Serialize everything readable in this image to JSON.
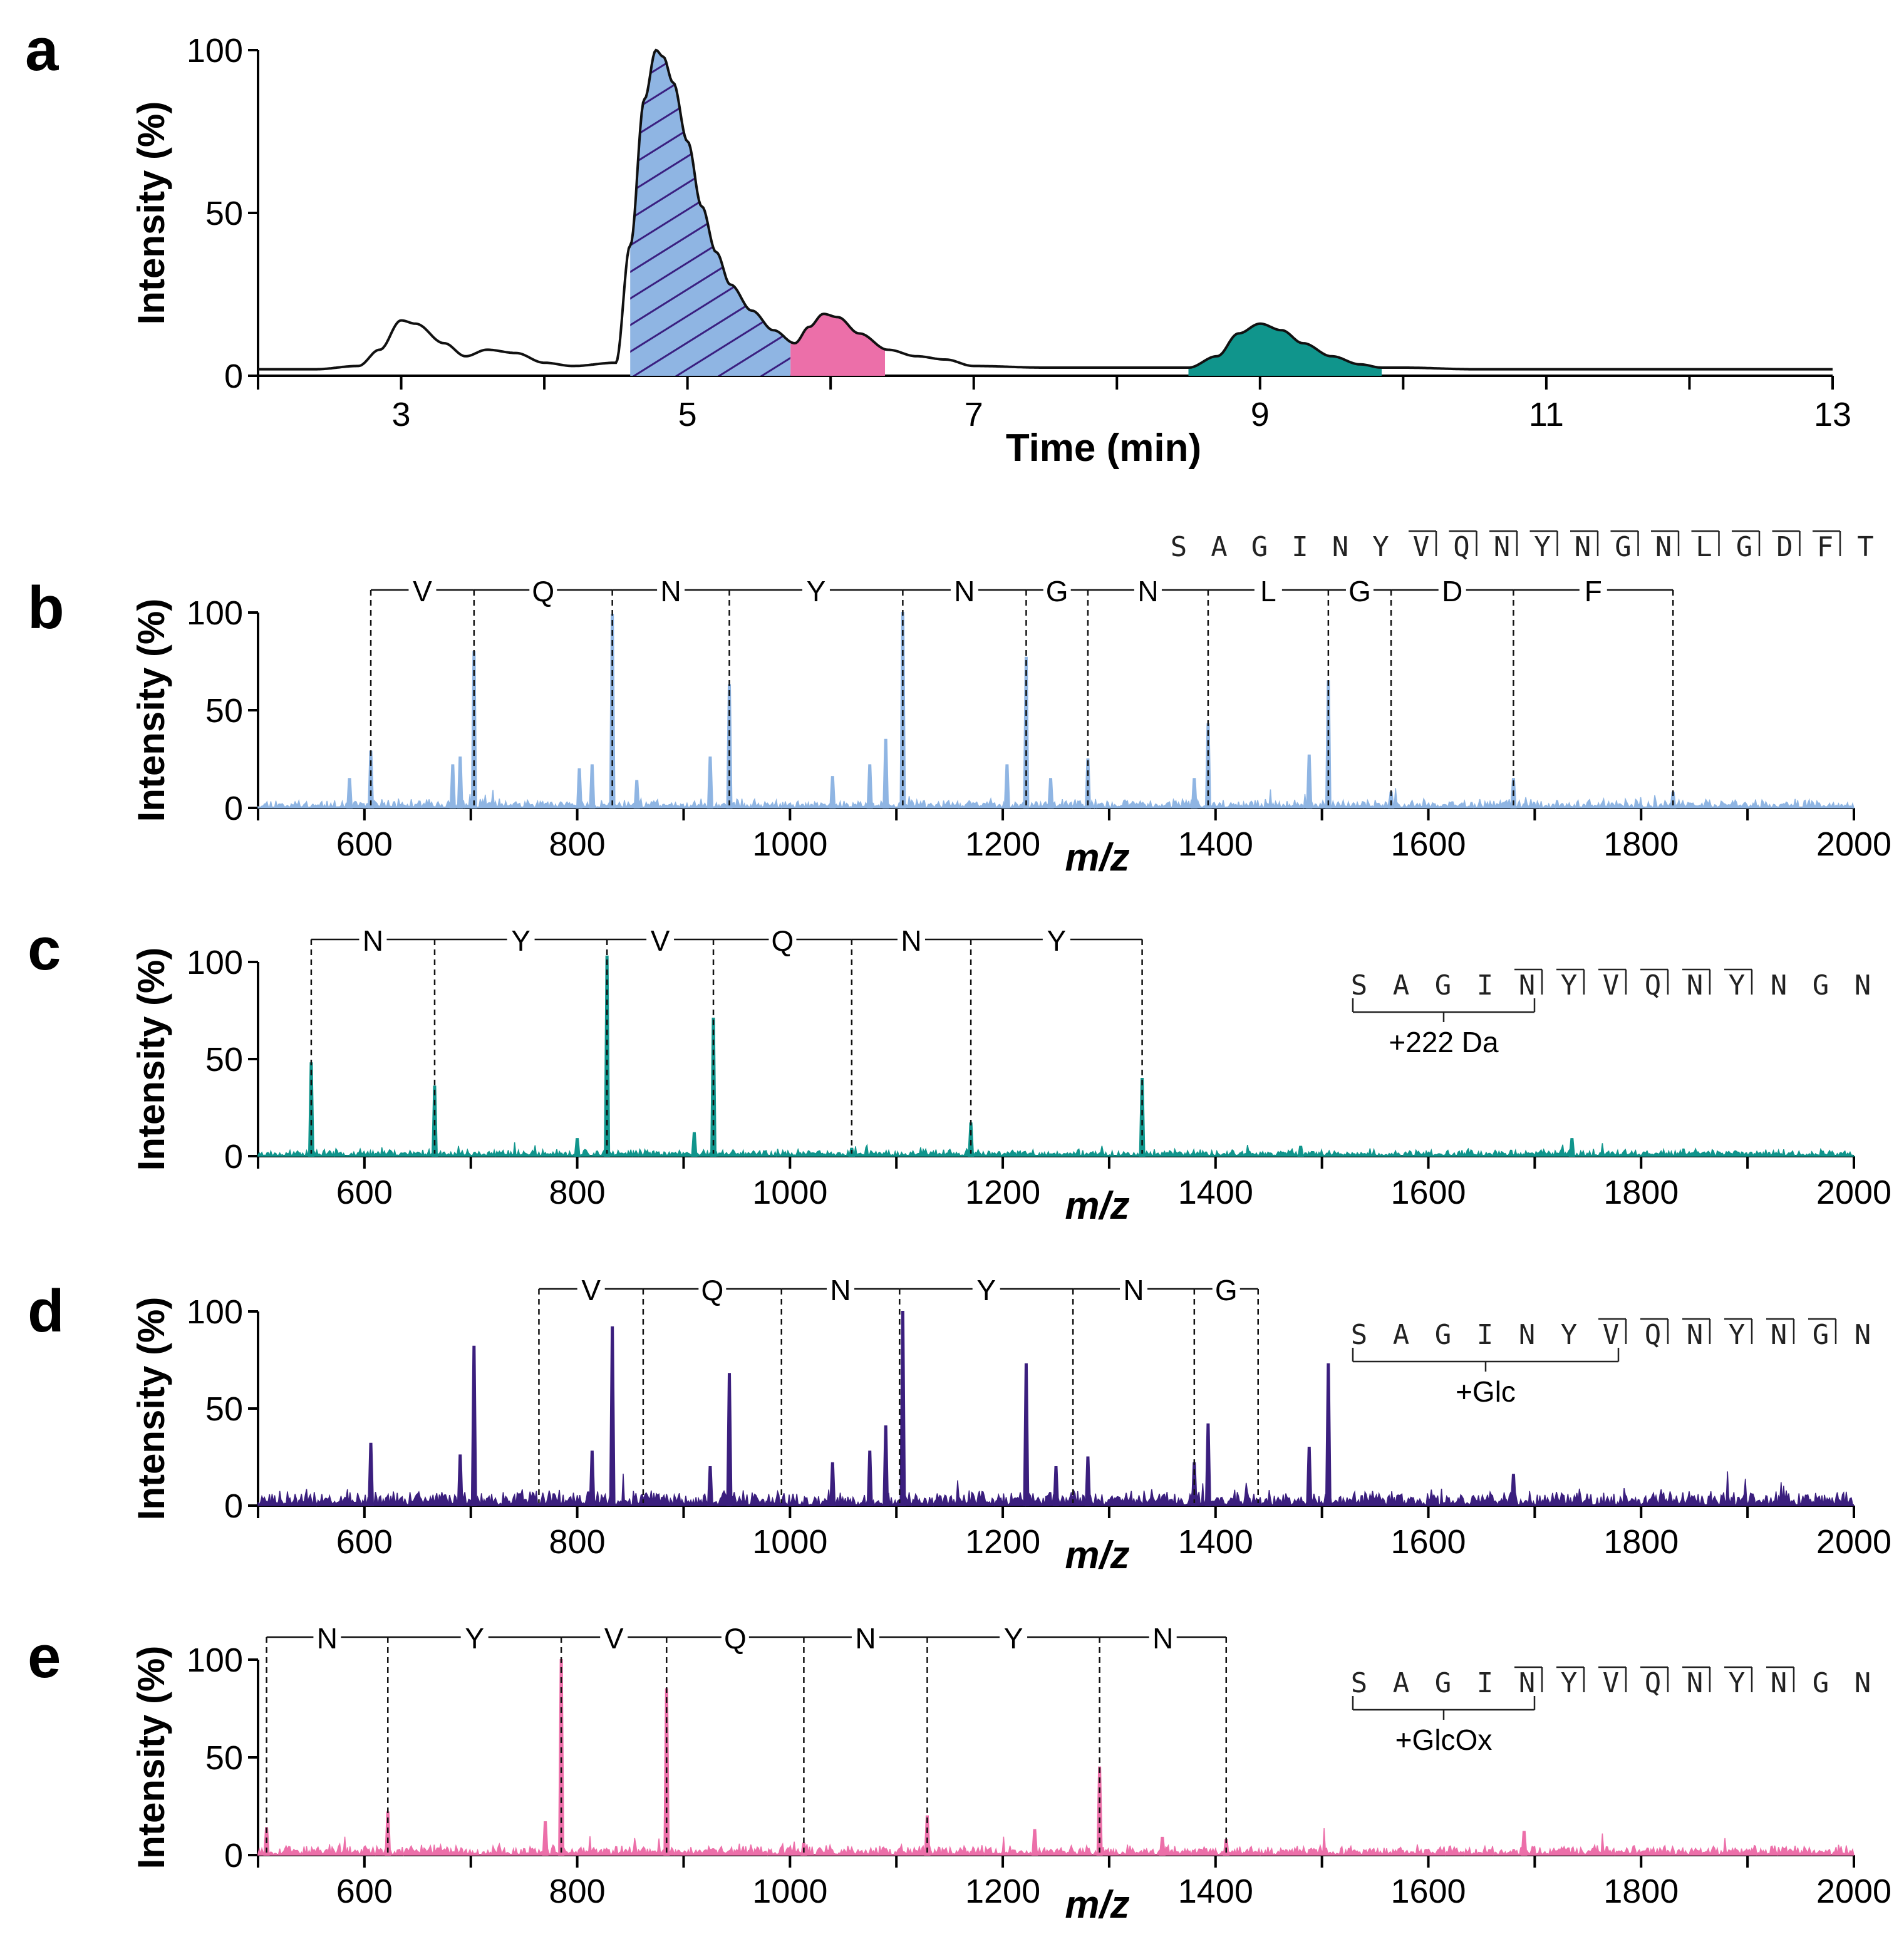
{
  "chart_data": [
    {
      "panel": "a",
      "type": "line",
      "title": "",
      "xlabel": "Time (min)",
      "ylabel": "Intensity (%)",
      "xlim": [
        2,
        13
      ],
      "ylim": [
        0,
        100
      ],
      "xticks": [
        3,
        5,
        7,
        9,
        11,
        13
      ],
      "yticks": [
        0,
        50,
        100
      ],
      "series": [
        {
          "name": "chromatogram",
          "x": [
            2.0,
            2.4,
            2.7,
            2.85,
            3.0,
            3.1,
            3.3,
            3.45,
            3.6,
            3.8,
            4.0,
            4.2,
            4.5,
            4.6,
            4.7,
            4.78,
            4.83,
            4.9,
            5.0,
            5.1,
            5.2,
            5.3,
            5.45,
            5.6,
            5.75,
            5.85,
            5.95,
            6.05,
            6.2,
            6.4,
            6.6,
            6.8,
            7.0,
            7.5,
            8.0,
            8.5,
            8.7,
            8.85,
            9.0,
            9.15,
            9.3,
            9.5,
            9.7,
            9.85,
            10.0,
            10.5,
            11.0,
            12.0,
            12.5,
            13.0
          ],
          "values": [
            2,
            2,
            3,
            8,
            17,
            16,
            10,
            6,
            8,
            7,
            4,
            3,
            4,
            40,
            85,
            100,
            98,
            90,
            72,
            52,
            38,
            28,
            20,
            14,
            10,
            15,
            19,
            18,
            13,
            8,
            6,
            5,
            3,
            2.5,
            2.5,
            2.5,
            6,
            13,
            16,
            14,
            10,
            6,
            3.5,
            2.5,
            2.5,
            2,
            2,
            2,
            2,
            2
          ]
        }
      ],
      "shaded_regions": [
        {
          "name": "hatched-blue",
          "x": [
            4.6,
            5.72
          ],
          "color": "#8fb5e3",
          "hatch": "#3a1f80"
        },
        {
          "name": "pink",
          "x": [
            5.72,
            6.38
          ],
          "color": "#ec6fa9"
        },
        {
          "name": "teal",
          "x": [
            8.5,
            9.85
          ],
          "color": "#10958c"
        }
      ]
    },
    {
      "panel": "b",
      "type": "line",
      "color": "#8fb5e3",
      "xlabel": "m/z",
      "ylabel": "Intensity (%)",
      "xlim": [
        500,
        2000
      ],
      "ylim": [
        0,
        100
      ],
      "xticks": [
        600,
        800,
        1000,
        1200,
        1400,
        1600,
        1800,
        2000
      ],
      "yticks": [
        0,
        50,
        100
      ],
      "noise_level": 5,
      "noise_seed": 11,
      "peaks": [
        [
          606,
          29
        ],
        [
          703,
          80
        ],
        [
          833,
          99
        ],
        [
          943,
          63
        ],
        [
          1106,
          100
        ],
        [
          1222,
          77
        ],
        [
          1280,
          25
        ],
        [
          1393,
          43
        ],
        [
          1506,
          65
        ],
        [
          1565,
          8
        ],
        [
          1680,
          15
        ],
        [
          1830,
          8
        ],
        [
          586,
          15
        ],
        [
          690,
          26
        ],
        [
          683,
          22
        ],
        [
          814,
          22
        ],
        [
          802,
          20
        ],
        [
          925,
          26
        ],
        [
          1090,
          35
        ],
        [
          1075,
          22
        ],
        [
          1204,
          22
        ],
        [
          1245,
          15
        ],
        [
          1488,
          27
        ],
        [
          1380,
          15
        ],
        [
          856,
          14
        ],
        [
          1040,
          16
        ]
      ],
      "ladder": {
        "markers": [
          606,
          703,
          833,
          943,
          1106,
          1222,
          1280,
          1393,
          1506,
          1565,
          1680,
          1830
        ],
        "labels": [
          "V",
          "Q",
          "N",
          "Y",
          "N",
          "G",
          "N",
          "L",
          "G",
          "D",
          "F"
        ]
      },
      "sequence": [
        "S",
        "A",
        "G",
        "I",
        "N",
        "Y",
        "V",
        "Q",
        "N",
        "Y",
        "N",
        "G",
        "N",
        "L",
        "G",
        "D",
        "F",
        "T"
      ],
      "bracketed_from": 6,
      "bracketed_to": 16,
      "modification": ""
    },
    {
      "panel": "c",
      "type": "line",
      "color": "#10958c",
      "xlabel": "m/z",
      "ylabel": "Intensity (%)",
      "xlim": [
        500,
        2000
      ],
      "ylim": [
        0,
        100
      ],
      "xticks": [
        600,
        800,
        1000,
        1200,
        1400,
        1600,
        1800,
        2000
      ],
      "yticks": [
        0,
        50,
        100
      ],
      "noise_level": 4,
      "noise_seed": 23,
      "peaks": [
        [
          550,
          48
        ],
        [
          666,
          36
        ],
        [
          828,
          103
        ],
        [
          928,
          71
        ],
        [
          1058,
          4
        ],
        [
          1170,
          17
        ],
        [
          1331,
          40
        ],
        [
          800,
          9
        ],
        [
          910,
          12
        ],
        [
          1735,
          9
        ],
        [
          1480,
          5
        ]
      ],
      "ladder": {
        "markers": [
          550,
          666,
          828,
          928,
          1058,
          1170,
          1331
        ],
        "labels": [
          "N",
          "Y",
          "V",
          "Q",
          "N",
          "Y"
        ]
      },
      "sequence": [
        "S",
        "A",
        "G",
        "I",
        "N",
        "Y",
        "V",
        "Q",
        "N",
        "Y",
        "N",
        "G",
        "N"
      ],
      "bracketed_from": 4,
      "bracketed_to": 9,
      "mod_span": [
        0,
        4
      ],
      "modification": "+222 Da"
    },
    {
      "panel": "d",
      "type": "line",
      "color": "#3b1f7e",
      "xlabel": "m/z",
      "ylabel": "Intensity (%)",
      "xlim": [
        500,
        2000
      ],
      "ylim": [
        0,
        100
      ],
      "xticks": [
        600,
        800,
        1000,
        1200,
        1400,
        1600,
        1800,
        2000
      ],
      "yticks": [
        0,
        50,
        100
      ],
      "noise_level": 9,
      "noise_seed": 37,
      "peaks": [
        [
          606,
          32
        ],
        [
          703,
          82
        ],
        [
          833,
          92
        ],
        [
          943,
          68
        ],
        [
          1106,
          100
        ],
        [
          1222,
          73
        ],
        [
          1393,
          42
        ],
        [
          1506,
          73
        ],
        [
          1488,
          30
        ],
        [
          690,
          26
        ],
        [
          814,
          28
        ],
        [
          1090,
          41
        ],
        [
          1075,
          28
        ],
        [
          1280,
          25
        ],
        [
          925,
          20
        ],
        [
          1040,
          22
        ],
        [
          1680,
          16
        ],
        [
          1380,
          22
        ],
        [
          1250,
          20
        ]
      ],
      "ladder": {
        "markers": [
          764,
          862,
          992,
          1103,
          1266,
          1380,
          1440
        ],
        "labels": [
          "V",
          "Q",
          "N",
          "Y",
          "N",
          "G"
        ]
      },
      "sequence": [
        "S",
        "A",
        "G",
        "I",
        "N",
        "Y",
        "V",
        "Q",
        "N",
        "Y",
        "N",
        "G",
        "N"
      ],
      "bracketed_from": 6,
      "bracketed_to": 11,
      "mod_span": [
        0,
        6
      ],
      "modification": "+Glc"
    },
    {
      "panel": "e",
      "type": "line",
      "color": "#ec6fa9",
      "xlabel": "m/z",
      "ylabel": "Intensity (%)",
      "xlim": [
        500,
        2000
      ],
      "ylim": [
        0,
        100
      ],
      "xticks": [
        600,
        800,
        1000,
        1200,
        1400,
        1600,
        1800,
        2000
      ],
      "yticks": [
        0,
        50,
        100
      ],
      "noise_level": 6,
      "noise_seed": 53,
      "peaks": [
        [
          508,
          14
        ],
        [
          622,
          22
        ],
        [
          785,
          100
        ],
        [
          884,
          85
        ],
        [
          1013,
          6
        ],
        [
          1129,
          20
        ],
        [
          1291,
          45
        ],
        [
          1410,
          8
        ],
        [
          770,
          17
        ],
        [
          1230,
          13
        ],
        [
          1690,
          12
        ],
        [
          1350,
          9
        ]
      ],
      "ladder": {
        "markers": [
          508,
          622,
          785,
          884,
          1013,
          1129,
          1291,
          1410
        ],
        "labels": [
          "N",
          "Y",
          "V",
          "Q",
          "N",
          "Y",
          "N"
        ]
      },
      "sequence": [
        "S",
        "A",
        "G",
        "I",
        "N",
        "Y",
        "V",
        "Q",
        "N",
        "Y",
        "N",
        "G",
        "N"
      ],
      "bracketed_from": 4,
      "bracketed_to": 10,
      "mod_span": [
        0,
        4
      ],
      "modification": "+GlcOx"
    }
  ]
}
